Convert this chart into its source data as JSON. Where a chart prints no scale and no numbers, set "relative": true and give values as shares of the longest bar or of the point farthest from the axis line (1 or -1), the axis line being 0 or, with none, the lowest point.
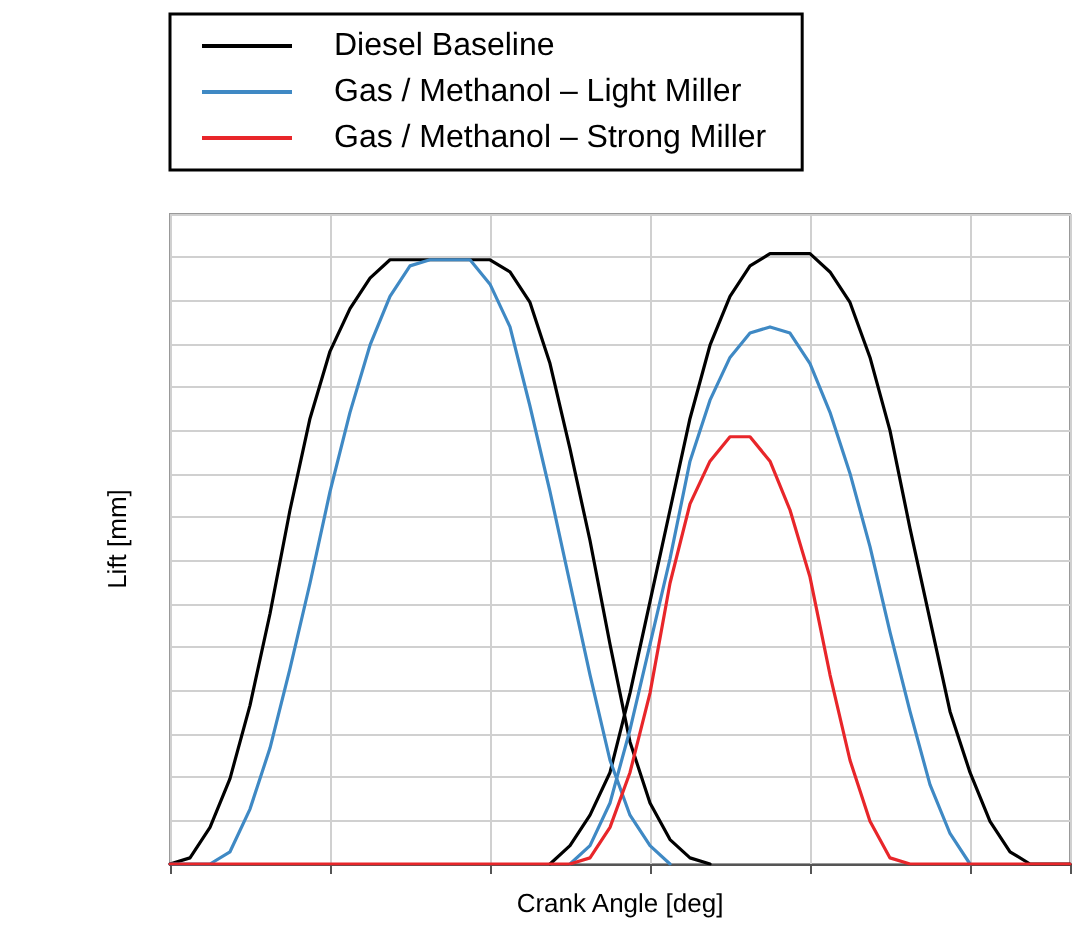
{
  "chart_data": {
    "type": "line",
    "relative": true,
    "xlabel": "Crank Angle [deg]",
    "ylabel": "Lift [mm]",
    "legend": "top",
    "grid": true,
    "marker": "none",
    "line_style": "solid",
    "categories": [
      null,
      null,
      null,
      null,
      null,
      null,
      null,
      null,
      null,
      null,
      null,
      null,
      null,
      null,
      null,
      null,
      null,
      null,
      null,
      null,
      null,
      null,
      null,
      null,
      null,
      null,
      null,
      null,
      null,
      null,
      null,
      null,
      null,
      null,
      null,
      null,
      null,
      null,
      null,
      null,
      null,
      null,
      null,
      null,
      null,
      null
    ],
    "series": [
      {
        "name": "Diesel Baseline",
        "color": "#000000",
        "values": [
          0,
          0.01,
          0.06,
          0.14,
          0.26,
          0.41,
          0.58,
          0.73,
          0.84,
          0.91,
          0.96,
          0.99,
          0.99,
          0.99,
          0.99,
          0.99,
          0.99,
          0.97,
          0.92,
          0.82,
          0.68,
          0.53,
          0.36,
          0.2,
          0.1,
          0.04,
          0.01,
          0,
          null,
          null,
          null,
          null,
          null,
          null,
          null,
          null,
          null,
          null,
          null,
          null,
          null,
          null,
          null,
          null,
          null,
          null
        ]
      },
      {
        "color": "#000000",
        "values": [
          null,
          null,
          null,
          null,
          null,
          null,
          null,
          null,
          null,
          null,
          null,
          null,
          null,
          null,
          null,
          null,
          null,
          null,
          null,
          0,
          0.03,
          0.08,
          0.15,
          0.28,
          0.43,
          0.58,
          0.73,
          0.85,
          0.93,
          0.98,
          1.0,
          1.0,
          1.0,
          0.97,
          0.92,
          0.83,
          0.71,
          0.55,
          0.4,
          0.25,
          0.15,
          0.07,
          0.02,
          0,
          0,
          0
        ]
      },
      {
        "name": "Gas / Methanol – Light Miller",
        "color": "#3f89c4",
        "values": [
          0,
          0,
          0,
          0.02,
          0.09,
          0.19,
          0.32,
          0.46,
          0.61,
          0.74,
          0.85,
          0.93,
          0.98,
          0.99,
          0.99,
          0.99,
          0.95,
          0.88,
          0.75,
          0.61,
          0.46,
          0.31,
          0.17,
          0.08,
          0.03,
          0,
          null,
          null,
          null,
          null,
          null,
          null,
          null,
          null,
          null,
          null,
          null,
          null,
          null,
          null,
          null,
          null,
          null,
          null,
          null,
          null
        ]
      },
      {
        "color": "#3f89c4",
        "values": [
          null,
          null,
          null,
          null,
          null,
          null,
          null,
          null,
          null,
          null,
          null,
          null,
          null,
          null,
          null,
          null,
          null,
          null,
          null,
          null,
          0,
          0.03,
          0.1,
          0.22,
          0.36,
          0.5,
          0.66,
          0.76,
          0.83,
          0.87,
          0.88,
          0.87,
          0.82,
          0.74,
          0.64,
          0.52,
          0.38,
          0.25,
          0.13,
          0.05,
          0,
          null,
          null,
          null,
          null,
          null
        ]
      },
      {
        "name": "Gas / Methanol – Strong Miller",
        "color": "#e8262a",
        "values": [
          0,
          0,
          0,
          0,
          0,
          0,
          0,
          0,
          0,
          0,
          0,
          0,
          0,
          0,
          0,
          0,
          0,
          0,
          0,
          0,
          0,
          0.01,
          0.06,
          0.15,
          0.28,
          0.46,
          0.59,
          0.66,
          0.7,
          0.7,
          0.66,
          0.58,
          0.47,
          0.31,
          0.17,
          0.07,
          0.01,
          0,
          0,
          0,
          0,
          0,
          0,
          0,
          0,
          0
        ]
      }
    ]
  }
}
